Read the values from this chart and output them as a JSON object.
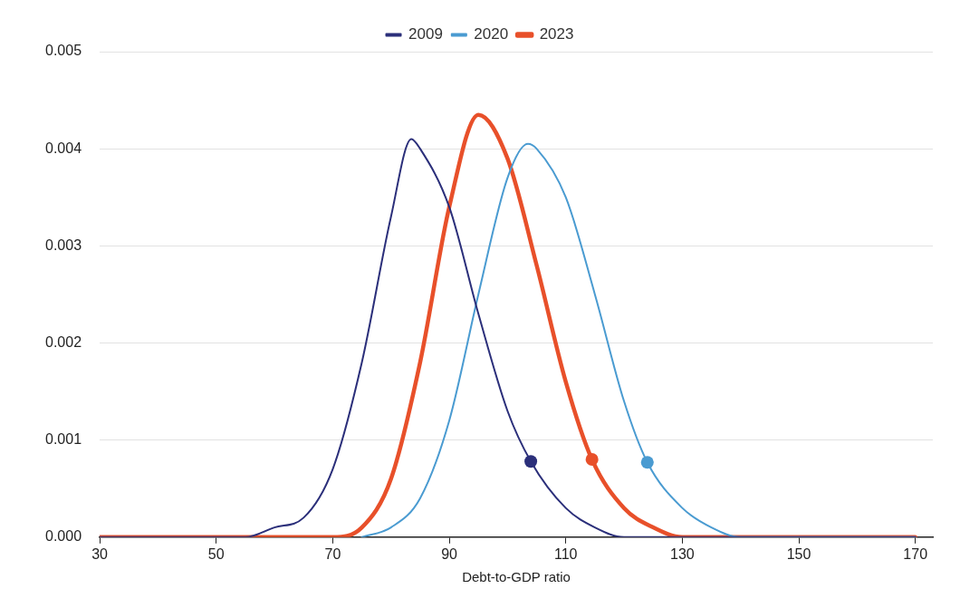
{
  "chart_data": {
    "type": "line",
    "xlabel": "Debt-to-GDP ratio",
    "legend": "top",
    "grid": "y",
    "marker": "none",
    "line_style": "solid",
    "xlim": [
      30,
      173
    ],
    "xticks": [
      30,
      50,
      70,
      90,
      110,
      130,
      150,
      170
    ],
    "ylim": [
      0,
      0.005
    ],
    "yticks": [
      {
        "value": 0,
        "label": "0.000"
      },
      {
        "value": 0.001,
        "label": "0.001"
      },
      {
        "value": 0.002,
        "label": "0.002"
      },
      {
        "value": 0.003,
        "label": "0.003"
      },
      {
        "value": 0.004,
        "label": "0.004"
      },
      {
        "value": 0.005,
        "label": "0.005"
      }
    ],
    "series": [
      {
        "name": "2009",
        "color": "#2b2f7a",
        "x": [
          30,
          40,
          50,
          55,
          60,
          65,
          70,
          75,
          80,
          83.5,
          85,
          90,
          95,
          100,
          104,
          110,
          115,
          120,
          130,
          150,
          170
        ],
        "values": [
          0,
          0,
          0,
          0,
          0.0001,
          0.0002,
          0.0007,
          0.0018,
          0.0033,
          0.0041,
          0.004,
          0.0034,
          0.0023,
          0.0013,
          0.00078,
          0.0003,
          0.0001,
          0,
          0,
          0,
          0
        ]
      },
      {
        "name": "2020",
        "color": "#4a9bd1",
        "x": [
          75,
          80,
          85,
          90,
          95,
          100,
          103.5,
          105,
          110,
          115,
          120,
          124,
          130,
          135,
          140,
          150,
          170
        ],
        "values": [
          0,
          0.0001,
          0.0004,
          0.0012,
          0.0025,
          0.0037,
          0.00405,
          0.004,
          0.0035,
          0.0025,
          0.0014,
          0.00077,
          0.0003,
          0.0001,
          0,
          0,
          0
        ]
      },
      {
        "name": "2023",
        "color": "#e8502a",
        "x": [
          30,
          50,
          65,
          70,
          75,
          80,
          85,
          90,
          95,
          100,
          105,
          110,
          114.5,
          120,
          125,
          130,
          140,
          150,
          170
        ],
        "values": [
          0,
          0,
          0,
          0,
          0.0001,
          0.0006,
          0.0018,
          0.0034,
          0.00435,
          0.0039,
          0.0028,
          0.0016,
          0.0008,
          0.0003,
          0.0001,
          0,
          0,
          0,
          0
        ]
      },
      {
        "type": "scatter",
        "marker": "circle",
        "color": "#2b2f7a",
        "x": [
          104
        ],
        "values": [
          0.00078
        ]
      },
      {
        "type": "scatter",
        "marker": "circle",
        "color": "#e8502a",
        "x": [
          114.5
        ],
        "values": [
          0.0008
        ]
      },
      {
        "type": "scatter",
        "marker": "circle",
        "color": "#4a9bd1",
        "x": [
          124
        ],
        "values": [
          0.00077
        ]
      }
    ]
  }
}
